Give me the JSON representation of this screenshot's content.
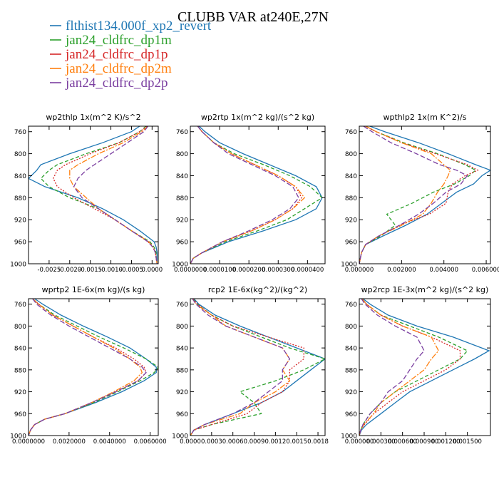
{
  "title": "CLUBB VAR at240E,27N",
  "legend": [
    {
      "label": "flthist134.000f_xp2_revert",
      "color": "#1f77b4",
      "dash": "solid"
    },
    {
      "label": "jan24_cldfrc_dp1m",
      "color": "#2ca02c",
      "dash": "5,3"
    },
    {
      "label": "jan24_cldfrc_dp1p",
      "color": "#d62728",
      "dash": "2,2"
    },
    {
      "label": "jan24_cldfrc_dp2m",
      "color": "#ff7f0e",
      "dash": "8,2,2,2"
    },
    {
      "label": "jan24_cldfrc_dp2p",
      "color": "#7b3fa0",
      "dash": "7,3"
    }
  ],
  "chart_data": [
    {
      "type": "line",
      "title": "wp2thlp   1x(m^2 K)/s^2",
      "ylim": [
        1000,
        750
      ],
      "yticks": [
        "760",
        "800",
        "840",
        "880",
        "920",
        "960",
        "1000"
      ],
      "xlim": [
        -0.003,
        0.00015
      ],
      "xticks": [
        {
          "v": -0.0025,
          "label": "-0.0025"
        },
        {
          "v": -0.002,
          "label": "-0.0020"
        },
        {
          "v": -0.0015,
          "label": "-0.0015"
        },
        {
          "v": -0.001,
          "label": "-0.0010"
        },
        {
          "v": -0.0005,
          "label": "-0.0005"
        },
        {
          "v": 0.0,
          "label": "0.0000"
        }
      ],
      "y": [
        750,
        760,
        780,
        800,
        820,
        830,
        845,
        860,
        880,
        900,
        920,
        940,
        960,
        970,
        980,
        990,
        1000
      ],
      "series": [
        {
          "values": [
            -0.0003,
            -0.0005,
            -0.0012,
            -0.002,
            -0.0027,
            -0.0028,
            -0.003,
            -0.0026,
            -0.0018,
            -0.0012,
            -0.0007,
            -0.0003,
            5e-05,
            0.0001,
            0.00012,
            0.00012,
            0.00012
          ]
        },
        {
          "values": [
            -0.00015,
            -0.0003,
            -0.0008,
            -0.0016,
            -0.0023,
            -0.0025,
            -0.0027,
            -0.0025,
            -0.002,
            -0.0013,
            -0.0009,
            -0.0005,
            -5e-05,
            5e-05,
            0.0001,
            0.0001,
            0.00012
          ]
        },
        {
          "values": [
            -0.00012,
            -0.0003,
            -0.0008,
            -0.0015,
            -0.0021,
            -0.0023,
            -0.0024,
            -0.0023,
            -0.0019,
            -0.0014,
            -0.0009,
            -0.0005,
            -0.0001,
            2e-05,
            8e-05,
            0.0001,
            0.00012
          ]
        },
        {
          "values": [
            -0.0001,
            -0.00025,
            -0.0007,
            -0.0013,
            -0.0018,
            -0.002,
            -0.002,
            -0.0019,
            -0.0016,
            -0.0013,
            -0.0009,
            -0.0005,
            -8e-05,
            3e-05,
            8e-05,
            0.0001,
            0.00012
          ]
        },
        {
          "values": [
            -0.0001,
            -0.0002,
            -0.0006,
            -0.001,
            -0.0014,
            -0.0016,
            -0.0018,
            -0.0019,
            -0.0017,
            -0.0013,
            -0.0009,
            -0.0005,
            -0.0001,
            2e-05,
            8e-05,
            0.0001,
            0.00012
          ]
        }
      ]
    },
    {
      "type": "line",
      "title": "wp2rtp   1x(m^2 kg)/(s^2 kg)",
      "ylim": [
        1000,
        750
      ],
      "yticks": [
        "760",
        "800",
        "840",
        "880",
        "920",
        "960",
        "1000"
      ],
      "xlim": [
        0.0,
        4.6e-05
      ],
      "xticks": [
        {
          "v": 0.0,
          "label": "0.0000000"
        },
        {
          "v": 1e-05,
          "label": "0.0000100"
        },
        {
          "v": 2e-05,
          "label": "0.0000200"
        },
        {
          "v": 3e-05,
          "label": "0.0000300"
        },
        {
          "v": 4e-05,
          "label": "0.0000400"
        }
      ],
      "y": [
        750,
        760,
        780,
        800,
        820,
        840,
        860,
        880,
        900,
        920,
        940,
        960,
        980,
        990,
        1000
      ],
      "series": [
        {
          "values": [
            3e-06,
            5e-06,
            1e-05,
            1.8e-05,
            2.7e-05,
            3.6e-05,
            4.3e-05,
            4.5e-05,
            4.3e-05,
            3.6e-05,
            2.5e-05,
            1.3e-05,
            4e-06,
            1e-06,
            0.0
          ]
        },
        {
          "values": [
            2.5e-06,
            4e-06,
            8e-06,
            1.5e-05,
            2.5e-05,
            3.4e-05,
            4.1e-05,
            4.5e-05,
            3.9e-05,
            3.3e-05,
            2.3e-05,
            1.2e-05,
            4e-06,
            1e-06,
            0.0
          ]
        },
        {
          "values": [
            2.5e-06,
            4e-06,
            8e-06,
            1.4e-05,
            2.2e-05,
            3e-05,
            3.6e-05,
            3.8e-05,
            3.5e-05,
            2.9e-05,
            2.1e-05,
            1.1e-05,
            4e-06,
            1e-06,
            0.0
          ]
        },
        {
          "values": [
            2.5e-06,
            4e-06,
            8e-06,
            1.4e-05,
            2.2e-05,
            3e-05,
            3.6e-05,
            3.9e-05,
            3.5e-05,
            2.9e-05,
            2.1e-05,
            1.1e-05,
            4e-06,
            1e-06,
            0.0
          ]
        },
        {
          "values": [
            2.5e-06,
            4e-06,
            8e-06,
            1.3e-05,
            2.1e-05,
            2.9e-05,
            3.5e-05,
            3.7e-05,
            3.4e-05,
            2.8e-05,
            2e-05,
            1.1e-05,
            4e-06,
            1e-06,
            0.0
          ]
        }
      ]
    },
    {
      "type": "line",
      "title": "wpthlp2   1x(m K^2)/s",
      "ylim": [
        1000,
        750
      ],
      "yticks": [
        "760",
        "800",
        "840",
        "880",
        "920",
        "960",
        "1000"
      ],
      "xlim": [
        0.0,
        0.0062
      ],
      "xticks": [
        {
          "v": 0.0,
          "label": "0.000000"
        },
        {
          "v": 0.002,
          "label": "0.002000"
        },
        {
          "v": 0.004,
          "label": "0.004000"
        },
        {
          "v": 0.006,
          "label": "0.006000"
        }
      ],
      "y": [
        750,
        760,
        780,
        800,
        820,
        830,
        840,
        855,
        870,
        890,
        910,
        930,
        950,
        965,
        980,
        1000
      ],
      "series": [
        {
          "values": [
            0.0005,
            0.0012,
            0.0028,
            0.0042,
            0.0055,
            0.0062,
            0.0058,
            0.0054,
            0.0046,
            0.0039,
            0.0032,
            0.0022,
            0.0011,
            0.0003,
            0.0001,
            0.0
          ]
        },
        {
          "values": [
            0.0003,
            0.0008,
            0.0021,
            0.0037,
            0.005,
            0.0055,
            0.0052,
            0.0045,
            0.0035,
            0.0025,
            0.0013,
            0.0017,
            0.001,
            0.0003,
            0.0001,
            0.0
          ]
        },
        {
          "values": [
            0.0003,
            0.0008,
            0.002,
            0.0036,
            0.0051,
            0.0056,
            0.005,
            0.0044,
            0.0042,
            0.0041,
            0.0033,
            0.0019,
            0.0009,
            0.0003,
            0.0001,
            0.0
          ]
        },
        {
          "values": [
            0.0003,
            0.0008,
            0.002,
            0.0034,
            0.004,
            0.0043,
            0.0042,
            0.004,
            0.0037,
            0.0034,
            0.003,
            0.002,
            0.0009,
            0.0003,
            0.0001,
            0.0
          ]
        },
        {
          "values": [
            0.0002,
            0.0006,
            0.0015,
            0.0027,
            0.0038,
            0.0046,
            0.0051,
            0.0048,
            0.0041,
            0.0035,
            0.0028,
            0.0019,
            0.0009,
            0.0003,
            0.0001,
            0.0
          ]
        }
      ]
    },
    {
      "type": "line",
      "title": "wprtp2   1E-6x(m kg)/(s kg)",
      "ylim": [
        1000,
        750
      ],
      "yticks": [
        "760",
        "800",
        "840",
        "880",
        "920",
        "960",
        "1000"
      ],
      "xlim": [
        0.0,
        0.0064
      ],
      "xticks": [
        {
          "v": 0.0,
          "label": "0.0000000"
        },
        {
          "v": 0.002,
          "label": "0.0020000"
        },
        {
          "v": 0.004,
          "label": "0.0040000"
        },
        {
          "v": 0.006,
          "label": "0.0060000"
        }
      ],
      "y": [
        750,
        760,
        780,
        800,
        820,
        840,
        860,
        875,
        885,
        900,
        920,
        940,
        960,
        970,
        980,
        990,
        1000
      ],
      "series": [
        {
          "values": [
            0.0003,
            0.0007,
            0.0016,
            0.0027,
            0.0039,
            0.005,
            0.0058,
            0.0063,
            0.0063,
            0.0057,
            0.0046,
            0.0033,
            0.0018,
            0.0008,
            0.0003,
            0.0001,
            0.0
          ]
        },
        {
          "values": [
            0.0002,
            0.0005,
            0.0013,
            0.0024,
            0.0035,
            0.0047,
            0.0058,
            0.0064,
            0.0062,
            0.0055,
            0.0044,
            0.0032,
            0.0018,
            0.0008,
            0.0003,
            0.0001,
            0.0
          ]
        },
        {
          "values": [
            0.0002,
            0.0005,
            0.0012,
            0.0022,
            0.0032,
            0.0043,
            0.0052,
            0.0057,
            0.0058,
            0.0054,
            0.0043,
            0.0031,
            0.0018,
            0.0008,
            0.0003,
            0.0001,
            0.0
          ]
        },
        {
          "values": [
            0.0002,
            0.0005,
            0.0012,
            0.0022,
            0.0032,
            0.0042,
            0.005,
            0.0055,
            0.0056,
            0.0052,
            0.0042,
            0.0031,
            0.0018,
            0.0008,
            0.0003,
            0.0001,
            0.0
          ]
        },
        {
          "values": [
            0.0002,
            0.0004,
            0.0011,
            0.002,
            0.003,
            0.004,
            0.005,
            0.0056,
            0.0058,
            0.0054,
            0.0043,
            0.0031,
            0.0018,
            0.0008,
            0.0003,
            0.0001,
            0.0
          ]
        }
      ]
    },
    {
      "type": "line",
      "title": "rcp2   1E-6x(kg^2)/(kg^2)",
      "ylim": [
        1000,
        750
      ],
      "yticks": [
        "760",
        "800",
        "840",
        "880",
        "920",
        "960",
        "1000"
      ],
      "xlim": [
        0.0,
        0.0019
      ],
      "xticks": [
        {
          "v": 0.0,
          "label": "0.0000"
        },
        {
          "v": 0.0003,
          "label": "0.0003"
        },
        {
          "v": 0.0006,
          "label": "0.0006"
        },
        {
          "v": 0.0009,
          "label": "0.0009"
        },
        {
          "v": 0.0012,
          "label": "0.0012"
        },
        {
          "v": 0.0015,
          "label": "0.0015"
        },
        {
          "v": 0.0018,
          "label": "0.0018"
        }
      ],
      "y": [
        750,
        760,
        780,
        800,
        820,
        840,
        860,
        880,
        900,
        920,
        940,
        960,
        980,
        990,
        1000
      ],
      "series": [
        {
          "values": [
            5e-05,
            0.00012,
            0.00035,
            0.0007,
            0.0011,
            0.0015,
            0.0019,
            0.0017,
            0.0015,
            0.0013,
            0.001,
            0.0006,
            0.0002,
            5e-05,
            0.0
          ]
        },
        {
          "values": [
            4e-05,
            0.0001,
            0.0003,
            0.0006,
            0.001,
            0.0014,
            0.0019,
            0.0016,
            0.0012,
            0.0007,
            0.0009,
            0.001,
            0.0003,
            5e-05,
            0.0
          ]
        },
        {
          "values": [
            4e-05,
            0.0001,
            0.0003,
            0.0006,
            0.0011,
            0.0016,
            0.0016,
            0.0014,
            0.0014,
            0.0013,
            0.001,
            0.0008,
            0.0003,
            5e-05,
            0.0
          ]
        },
        {
          "values": [
            3e-05,
            8e-05,
            0.0003,
            0.0005,
            0.0009,
            0.0013,
            0.0014,
            0.0013,
            0.0014,
            0.0012,
            0.0009,
            0.0007,
            0.0002,
            5e-05,
            0.0
          ]
        },
        {
          "values": [
            3e-05,
            8e-05,
            0.00025,
            0.0005,
            0.0009,
            0.0013,
            0.0014,
            0.0013,
            0.0013,
            0.0011,
            0.0009,
            0.0006,
            0.0002,
            5e-05,
            0.0
          ]
        }
      ]
    },
    {
      "type": "line",
      "title": "wp2rcp   1E-3x(m^2 kg)/(s^2 kg)",
      "ylim": [
        1000,
        750
      ],
      "yticks": [
        "760",
        "800",
        "840",
        "880",
        "920",
        "960",
        "1000"
      ],
      "xlim": [
        0.0,
        0.00182
      ],
      "xticks": [
        {
          "v": 0.0,
          "label": "0.000000"
        },
        {
          "v": 0.0003,
          "label": "0.000300"
        },
        {
          "v": 0.0006,
          "label": "0.000600"
        },
        {
          "v": 0.0009,
          "label": "0.000900"
        },
        {
          "v": 0.0012,
          "label": "0.001200"
        },
        {
          "v": 0.0015,
          "label": "0.001500"
        }
      ],
      "y": [
        750,
        760,
        780,
        800,
        820,
        845,
        860,
        880,
        900,
        920,
        940,
        960,
        980,
        990,
        1000
      ],
      "series": [
        {
          "values": [
            5e-05,
            0.00015,
            0.0004,
            0.0008,
            0.0013,
            0.0018,
            0.0016,
            0.0013,
            0.001,
            0.0007,
            0.0005,
            0.0003,
            0.0001,
            3e-05,
            0.0
          ]
        },
        {
          "values": [
            4e-05,
            0.0001,
            0.0003,
            0.0007,
            0.0011,
            0.0015,
            0.0014,
            0.0011,
            0.0008,
            0.0005,
            0.0003,
            0.00015,
            5e-05,
            2e-05,
            0.0
          ]
        },
        {
          "values": [
            4e-05,
            0.0001,
            0.0003,
            0.0006,
            0.001,
            0.0014,
            0.0014,
            0.0012,
            0.0009,
            0.0006,
            0.0004,
            0.0002,
            7e-05,
            2e-05,
            0.0
          ]
        },
        {
          "values": [
            4e-05,
            0.0001,
            0.0003,
            0.0006,
            0.001,
            0.0011,
            0.001,
            0.0009,
            0.0007,
            0.0005,
            0.0003,
            0.0002,
            6e-05,
            2e-05,
            0.0
          ]
        },
        {
          "values": [
            3e-05,
            8e-05,
            0.00025,
            0.0005,
            0.0008,
            0.0009,
            0.0008,
            0.0007,
            0.0006,
            0.0004,
            0.0003,
            0.00015,
            5e-05,
            2e-05,
            0.0
          ]
        }
      ]
    }
  ]
}
